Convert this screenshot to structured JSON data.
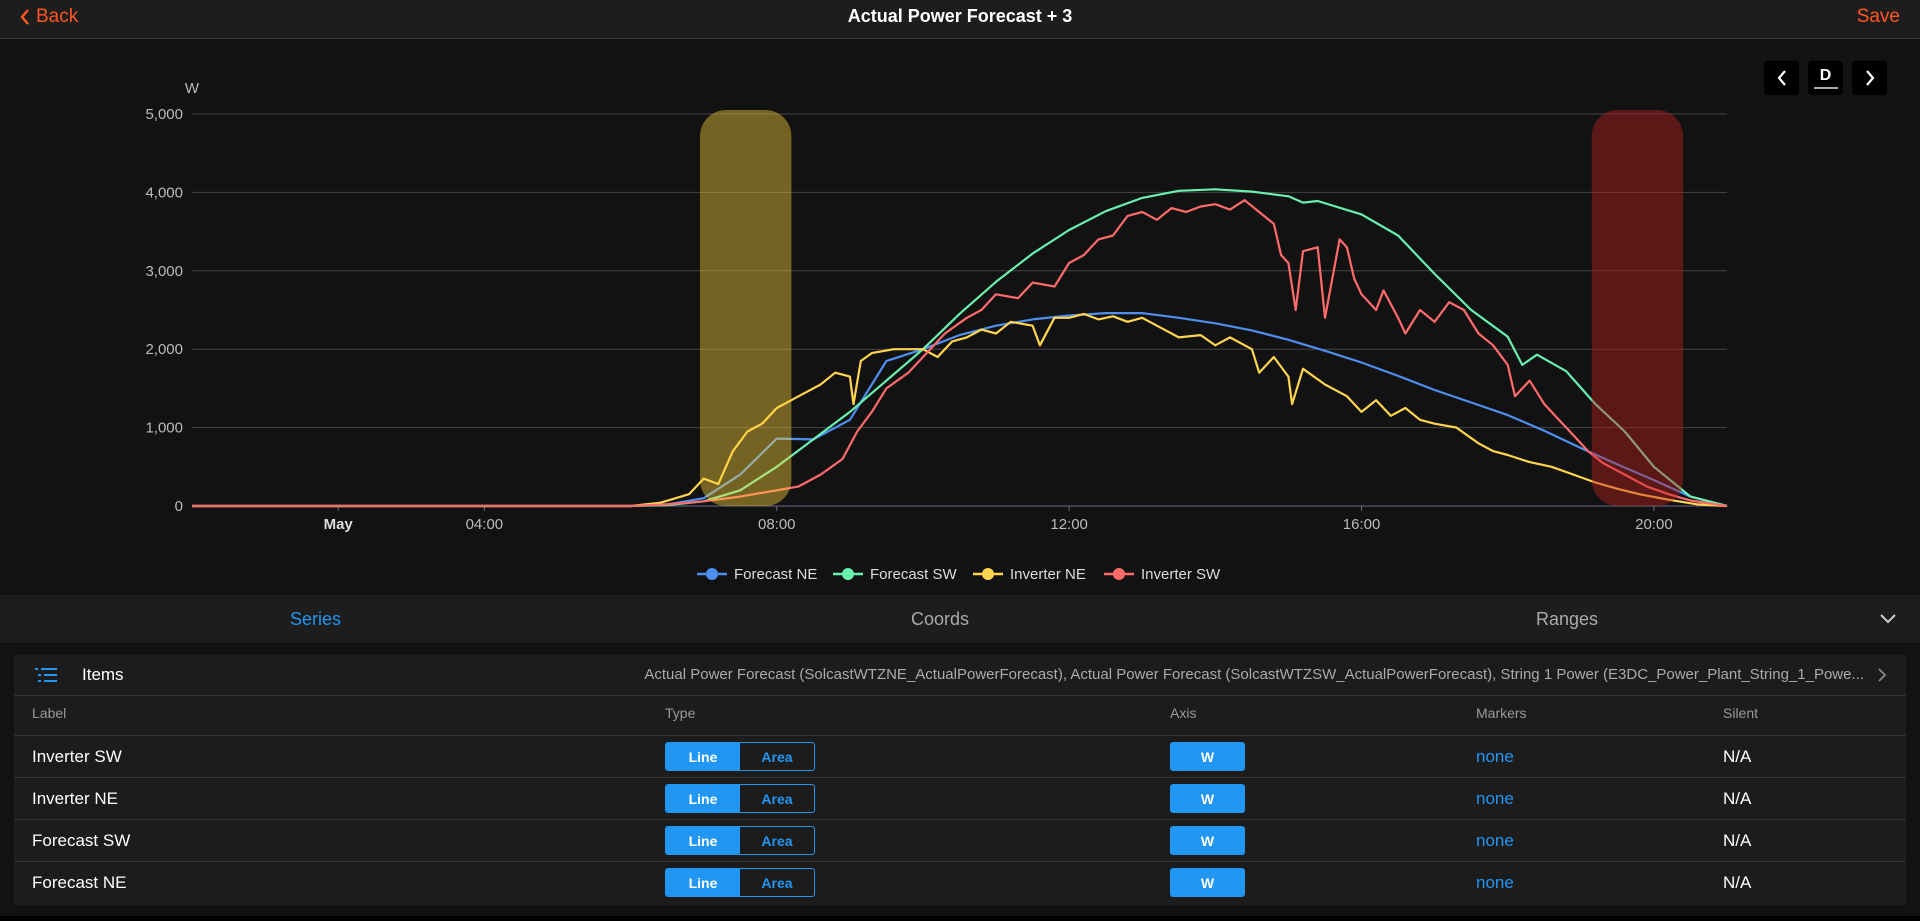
{
  "header": {
    "back_label": "Back",
    "title": "Actual Power Forecast + 3",
    "save_label": "Save"
  },
  "nav": {
    "period_label": "D"
  },
  "chart_data": {
    "type": "line",
    "ylabel": "W",
    "ylim": [
      0,
      5000
    ],
    "yticks": [
      "5,000",
      "4,000",
      "3,000",
      "2,000",
      "1,000",
      "0"
    ],
    "xlim": [
      0,
      21
    ],
    "xticks": [
      {
        "h": 2,
        "label": "May",
        "bold": true
      },
      {
        "h": 4,
        "label": "04:00"
      },
      {
        "h": 8,
        "label": "08:00"
      },
      {
        "h": 12,
        "label": "12:00"
      },
      {
        "h": 16,
        "label": "16:00"
      },
      {
        "h": 20,
        "label": "20:00"
      }
    ],
    "mark_areas": [
      {
        "from": 6.95,
        "to": 8.2,
        "y_top": 5000,
        "color": "#ffd43b"
      },
      {
        "from": 19.15,
        "to": 20.4,
        "y_top": 5000,
        "color": "#c41e1e"
      }
    ],
    "series": [
      {
        "name": "Forecast NE",
        "color": "#4e8ff0",
        "points": [
          [
            0,
            0
          ],
          [
            6.0,
            0
          ],
          [
            6.5,
            20
          ],
          [
            7.0,
            100
          ],
          [
            7.5,
            400
          ],
          [
            8.0,
            860
          ],
          [
            8.5,
            850
          ],
          [
            9.0,
            1100
          ],
          [
            9.5,
            1850
          ],
          [
            10.0,
            2000
          ],
          [
            10.5,
            2180
          ],
          [
            11.0,
            2300
          ],
          [
            11.5,
            2380
          ],
          [
            12.0,
            2430
          ],
          [
            12.5,
            2460
          ],
          [
            13.0,
            2460
          ],
          [
            13.5,
            2400
          ],
          [
            14.0,
            2330
          ],
          [
            14.5,
            2240
          ],
          [
            15.0,
            2120
          ],
          [
            15.5,
            1980
          ],
          [
            16.0,
            1830
          ],
          [
            16.5,
            1660
          ],
          [
            17.0,
            1480
          ],
          [
            17.5,
            1320
          ],
          [
            18.0,
            1160
          ],
          [
            18.5,
            960
          ],
          [
            19.0,
            740
          ],
          [
            19.5,
            530
          ],
          [
            20.0,
            330
          ],
          [
            20.5,
            120
          ],
          [
            21.0,
            0
          ]
        ]
      },
      {
        "name": "Forecast SW",
        "color": "#69f0ae",
        "points": [
          [
            0,
            0
          ],
          [
            6.0,
            0
          ],
          [
            6.5,
            10
          ],
          [
            7.0,
            60
          ],
          [
            7.5,
            200
          ],
          [
            8.0,
            500
          ],
          [
            8.5,
            850
          ],
          [
            9.0,
            1200
          ],
          [
            9.5,
            1600
          ],
          [
            10.0,
            2000
          ],
          [
            10.5,
            2450
          ],
          [
            11.0,
            2860
          ],
          [
            11.5,
            3220
          ],
          [
            12.0,
            3520
          ],
          [
            12.5,
            3760
          ],
          [
            13.0,
            3930
          ],
          [
            13.5,
            4020
          ],
          [
            14.0,
            4040
          ],
          [
            14.5,
            4010
          ],
          [
            15.0,
            3950
          ],
          [
            15.2,
            3870
          ],
          [
            15.4,
            3890
          ],
          [
            16.0,
            3720
          ],
          [
            16.5,
            3450
          ],
          [
            17.0,
            2960
          ],
          [
            17.5,
            2500
          ],
          [
            18.0,
            2160
          ],
          [
            18.2,
            1800
          ],
          [
            18.4,
            1930
          ],
          [
            18.8,
            1720
          ],
          [
            19.2,
            1300
          ],
          [
            19.6,
            950
          ],
          [
            20.0,
            500
          ],
          [
            20.5,
            120
          ],
          [
            21.0,
            0
          ]
        ]
      },
      {
        "name": "Inverter NE",
        "color": "#ffd54f",
        "points": [
          [
            0,
            0
          ],
          [
            6.0,
            0
          ],
          [
            6.4,
            40
          ],
          [
            6.8,
            150
          ],
          [
            7.0,
            350
          ],
          [
            7.2,
            280
          ],
          [
            7.4,
            700
          ],
          [
            7.6,
            950
          ],
          [
            7.8,
            1050
          ],
          [
            8.0,
            1250
          ],
          [
            8.3,
            1400
          ],
          [
            8.6,
            1550
          ],
          [
            8.8,
            1700
          ],
          [
            9.0,
            1650
          ],
          [
            9.05,
            1300
          ],
          [
            9.15,
            1850
          ],
          [
            9.3,
            1950
          ],
          [
            9.6,
            2000
          ],
          [
            10.0,
            2000
          ],
          [
            10.2,
            1900
          ],
          [
            10.4,
            2100
          ],
          [
            10.6,
            2150
          ],
          [
            10.8,
            2250
          ],
          [
            11.0,
            2200
          ],
          [
            11.2,
            2350
          ],
          [
            11.5,
            2300
          ],
          [
            11.6,
            2050
          ],
          [
            11.8,
            2400
          ],
          [
            12.0,
            2400
          ],
          [
            12.2,
            2450
          ],
          [
            12.4,
            2380
          ],
          [
            12.6,
            2420
          ],
          [
            12.8,
            2350
          ],
          [
            13.0,
            2400
          ],
          [
            13.2,
            2300
          ],
          [
            13.5,
            2150
          ],
          [
            13.8,
            2180
          ],
          [
            14.0,
            2050
          ],
          [
            14.2,
            2150
          ],
          [
            14.5,
            2000
          ],
          [
            14.6,
            1700
          ],
          [
            14.8,
            1900
          ],
          [
            15.0,
            1650
          ],
          [
            15.05,
            1300
          ],
          [
            15.2,
            1750
          ],
          [
            15.5,
            1550
          ],
          [
            15.8,
            1400
          ],
          [
            16.0,
            1200
          ],
          [
            16.2,
            1350
          ],
          [
            16.4,
            1150
          ],
          [
            16.6,
            1250
          ],
          [
            16.8,
            1100
          ],
          [
            17.0,
            1050
          ],
          [
            17.3,
            1000
          ],
          [
            17.6,
            800
          ],
          [
            17.8,
            700
          ],
          [
            18.0,
            650
          ],
          [
            18.3,
            560
          ],
          [
            18.6,
            500
          ],
          [
            18.9,
            400
          ],
          [
            19.2,
            300
          ],
          [
            19.5,
            220
          ],
          [
            19.8,
            150
          ],
          [
            20.2,
            80
          ],
          [
            20.6,
            20
          ],
          [
            21.0,
            0
          ]
        ]
      },
      {
        "name": "Inverter SW",
        "color": "#ff6b6b",
        "points": [
          [
            0,
            0
          ],
          [
            6.0,
            0
          ],
          [
            6.5,
            20
          ],
          [
            7.0,
            60
          ],
          [
            7.5,
            120
          ],
          [
            8.0,
            200
          ],
          [
            8.3,
            250
          ],
          [
            8.6,
            400
          ],
          [
            8.9,
            600
          ],
          [
            9.1,
            950
          ],
          [
            9.3,
            1200
          ],
          [
            9.5,
            1500
          ],
          [
            9.8,
            1700
          ],
          [
            10.0,
            1900
          ],
          [
            10.3,
            2200
          ],
          [
            10.6,
            2400
          ],
          [
            10.8,
            2500
          ],
          [
            11.0,
            2700
          ],
          [
            11.3,
            2650
          ],
          [
            11.5,
            2850
          ],
          [
            11.8,
            2800
          ],
          [
            12.0,
            3100
          ],
          [
            12.2,
            3200
          ],
          [
            12.4,
            3400
          ],
          [
            12.6,
            3450
          ],
          [
            12.8,
            3700
          ],
          [
            13.0,
            3750
          ],
          [
            13.2,
            3650
          ],
          [
            13.4,
            3800
          ],
          [
            13.6,
            3750
          ],
          [
            13.8,
            3820
          ],
          [
            14.0,
            3850
          ],
          [
            14.2,
            3780
          ],
          [
            14.4,
            3900
          ],
          [
            14.6,
            3750
          ],
          [
            14.8,
            3600
          ],
          [
            14.9,
            3200
          ],
          [
            15.0,
            3100
          ],
          [
            15.1,
            2500
          ],
          [
            15.2,
            3250
          ],
          [
            15.4,
            3300
          ],
          [
            15.5,
            2400
          ],
          [
            15.7,
            3400
          ],
          [
            15.8,
            3300
          ],
          [
            15.9,
            2900
          ],
          [
            16.0,
            2700
          ],
          [
            16.2,
            2500
          ],
          [
            16.3,
            2750
          ],
          [
            16.5,
            2400
          ],
          [
            16.6,
            2200
          ],
          [
            16.8,
            2500
          ],
          [
            17.0,
            2350
          ],
          [
            17.2,
            2600
          ],
          [
            17.4,
            2500
          ],
          [
            17.6,
            2200
          ],
          [
            17.8,
            2050
          ],
          [
            18.0,
            1800
          ],
          [
            18.1,
            1400
          ],
          [
            18.3,
            1600
          ],
          [
            18.5,
            1300
          ],
          [
            18.7,
            1100
          ],
          [
            18.9,
            900
          ],
          [
            19.1,
            700
          ],
          [
            19.3,
            550
          ],
          [
            19.6,
            400
          ],
          [
            19.9,
            250
          ],
          [
            20.2,
            150
          ],
          [
            20.5,
            70
          ],
          [
            21.0,
            0
          ]
        ]
      }
    ]
  },
  "tabs": [
    {
      "label": "Series",
      "active": true
    },
    {
      "label": "Coords",
      "active": false
    },
    {
      "label": "Ranges",
      "active": false
    }
  ],
  "items": {
    "label": "Items",
    "value": "Actual Power Forecast (SolcastWTZNE_ActualPowerForecast), Actual Power Forecast (SolcastWTZSW_ActualPowerForecast), String 1 Power (E3DC_Power_Plant_String_1_Powe..."
  },
  "columns": {
    "label": "Label",
    "type": "Type",
    "axis": "Axis",
    "markers": "Markers",
    "silent": "Silent"
  },
  "rows": [
    {
      "label": "Inverter SW",
      "type_line": "Line",
      "type_area": "Area",
      "axis": "W",
      "markers": "none",
      "silent": "N/A"
    },
    {
      "label": "Inverter NE",
      "type_line": "Line",
      "type_area": "Area",
      "axis": "W",
      "markers": "none",
      "silent": "N/A"
    },
    {
      "label": "Forecast SW",
      "type_line": "Line",
      "type_area": "Area",
      "axis": "W",
      "markers": "none",
      "silent": "N/A"
    },
    {
      "label": "Forecast NE",
      "type_line": "Line",
      "type_area": "Area",
      "axis": "W",
      "markers": "none",
      "silent": "N/A"
    }
  ]
}
